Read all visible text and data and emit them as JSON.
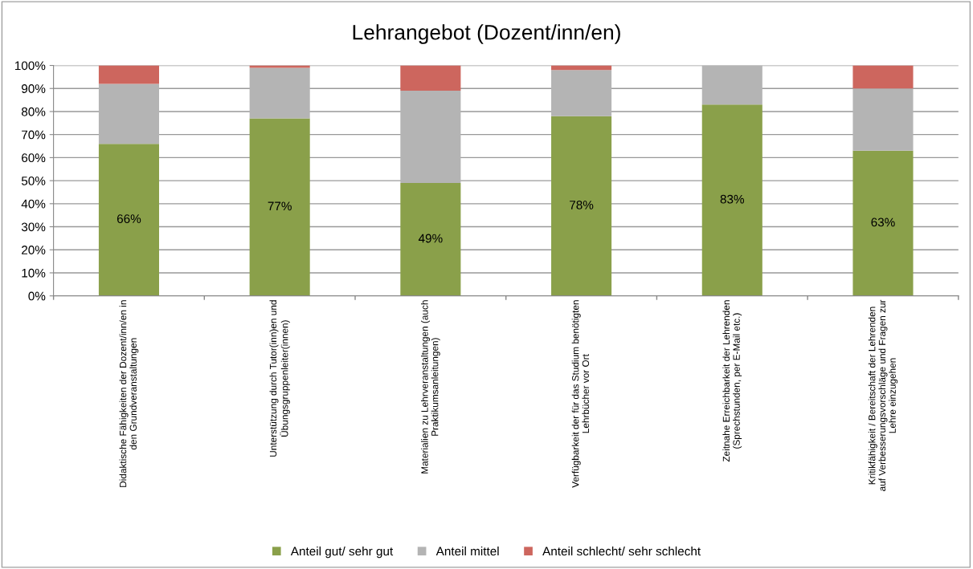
{
  "chart_data": {
    "type": "bar",
    "title": "Lehrangebot (Dozent/inn/en)",
    "stacked": true,
    "grid": "y",
    "legend": "bottom",
    "categories": [
      "Didaktische Fähigkeiten der Dozent/inn/en in\nden Grundveranstaltungen",
      "Unterstützung durch Tutor(inn)en und\nÜbungsgruppenleiter(innen)",
      "Materialien zu Lehrveranstaltungen (auch\nPraktikumsanleitungen)",
      "Verfügbarkeit der für das Studium benötigten\nLehrbücher vor Ort",
      "Zeitnahe Erreichbarkeit der Lehrenden\n(Sprechstunden, per E-Mail etc.)",
      "Kritikfähigkeit / Bereitschaft der Lehrenden\nauf Verbesserungsvorschläge und Fragen zur\nLehre einzugehen"
    ],
    "series": [
      {
        "name": "Anteil gut/ sehr gut",
        "color": "#8aa04a",
        "values": [
          66,
          77,
          49,
          78,
          83,
          63
        ],
        "value_labels": [
          "66%",
          "77%",
          "49%",
          "78%",
          "83%",
          "63%"
        ]
      },
      {
        "name": "Anteil mittel",
        "color": "#b4b4b4",
        "values": [
          26,
          22,
          40,
          20,
          17,
          27
        ]
      },
      {
        "name": "Anteil schlecht/ sehr schlecht",
        "color": "#cd665e",
        "values": [
          8,
          1,
          11,
          2,
          0,
          10
        ]
      }
    ],
    "ylim": [
      0,
      100
    ],
    "yticks": [
      {
        "value": 0,
        "label": "0%"
      },
      {
        "value": 10,
        "label": "10%"
      },
      {
        "value": 20,
        "label": "20%"
      },
      {
        "value": 30,
        "label": "30%"
      },
      {
        "value": 40,
        "label": "40%"
      },
      {
        "value": 50,
        "label": "50%"
      },
      {
        "value": 60,
        "label": "60%"
      },
      {
        "value": 70,
        "label": "70%"
      },
      {
        "value": 80,
        "label": "80%"
      },
      {
        "value": 90,
        "label": "90%"
      },
      {
        "value": 100,
        "label": "100%"
      }
    ]
  }
}
